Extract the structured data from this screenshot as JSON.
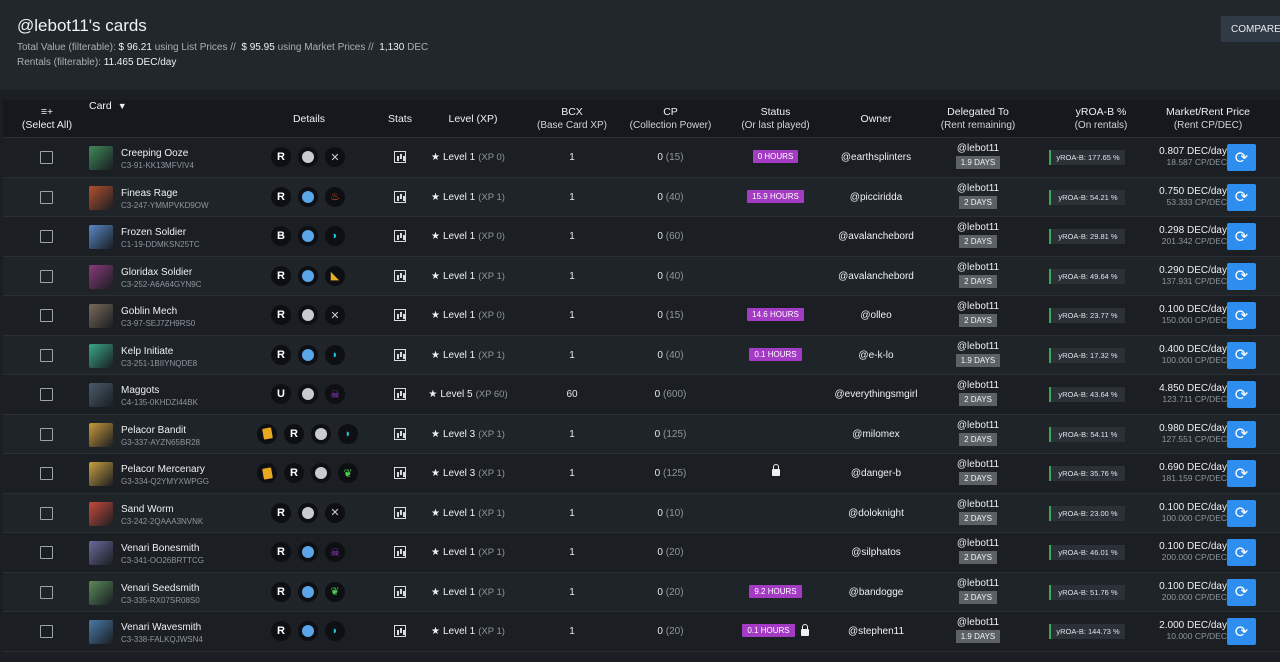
{
  "header": {
    "title": "@lebot11's cards",
    "total_label": "Total Value (filterable):",
    "list_value": "$ 96.21",
    "list_label": "using List Prices //",
    "market_value": "$ 95.95",
    "market_label": "using Market Prices //",
    "dec_value": "1,130",
    "dec_label": "DEC",
    "rentals_label": "Rentals (filterable):",
    "rentals_value": "11.465 DEC/day",
    "compare_label": "COMPARE Y"
  },
  "columns": {
    "select": "≡+",
    "select_sub": "(Select All)",
    "card": "Card",
    "details": "Details",
    "stats": "Stats",
    "level": "Level (XP)",
    "bcx": "BCX",
    "bcx_sub": "(Base Card XP)",
    "cp": "CP",
    "cp_sub": "(Collection Power)",
    "status": "Status",
    "status_sub": "(Or last played)",
    "owner": "Owner",
    "delegated": "Delegated To",
    "delegated_sub": "(Rent remaining)",
    "yroa": "yROA-B %",
    "yroa_sub": "(On rentals)",
    "price": "Market/Rent Price",
    "price_sub": "(Rent CP/DEC)"
  },
  "colors": {
    "accent": "#2d8ef0",
    "status_badge": "#a33bc5",
    "days_badge": "#5c6166"
  },
  "rows": [
    {
      "name": "Creeping Ooze",
      "id": "C3-91-KK13MFVIV4",
      "edition": "R",
      "mana": "#c8ccd0",
      "element": "neutral-icon",
      "el_color": "#0d0f12",
      "level": "Level 1",
      "xp": "(XP 0)",
      "bcx": "1",
      "cp": "0",
      "cp2": "(15)",
      "status": "0 HOURS",
      "lock": false,
      "owner": "@earthsplinters",
      "deleg": "@lebot11",
      "days": "1.9 DAYS",
      "yroa": "yROA-B: 177.65 %",
      "price": "0.807 DEC/day",
      "rent": "18.587 CP/DEC",
      "thumb": "#3f8a5a"
    },
    {
      "name": "Fineas Rage",
      "id": "C3-247-YMMPVKD9OW",
      "edition": "R",
      "mana": "#5aa6e8",
      "element": "fire-icon",
      "el_color": "#e25a3c",
      "level": "Level 1",
      "xp": "(XP 1)",
      "bcx": "1",
      "cp": "0",
      "cp2": "(40)",
      "status": "15.9 HOURS",
      "lock": false,
      "owner": "@picciridda",
      "deleg": "@lebot11",
      "days": "2 DAYS",
      "yroa": "yROA-B: 54.21 %",
      "price": "0.750 DEC/day",
      "rent": "53.333 CP/DEC",
      "thumb": "#b4502c"
    },
    {
      "name": "Frozen Soldier",
      "id": "C1-19-DDMKSN25TC",
      "edition": "B",
      "mana": "#5aa6e8",
      "element": "water-icon",
      "el_color": "#22c6d8",
      "level": "Level 1",
      "xp": "(XP 0)",
      "bcx": "1",
      "cp": "0",
      "cp2": "(60)",
      "status": "",
      "lock": false,
      "owner": "@avalanchebord",
      "deleg": "@lebot11",
      "days": "2 DAYS",
      "yroa": "yROA-B: 29.81 %",
      "price": "0.298 DEC/day",
      "rent": "201.342 CP/DEC",
      "thumb": "#5a88c8"
    },
    {
      "name": "Gloridax Soldier",
      "id": "C3-252-A6A64GYN9C",
      "edition": "R",
      "mana": "#5aa6e8",
      "element": "dragon-icon",
      "el_color": "#e8b020",
      "level": "Level 1",
      "xp": "(XP 1)",
      "bcx": "1",
      "cp": "0",
      "cp2": "(40)",
      "status": "",
      "lock": false,
      "owner": "@avalanchebord",
      "deleg": "@lebot11",
      "days": "2 DAYS",
      "yroa": "yROA-B: 49.64 %",
      "price": "0.290 DEC/day",
      "rent": "137.931 CP/DEC",
      "thumb": "#8a3a7a"
    },
    {
      "name": "Goblin Mech",
      "id": "C3-97-SEJ7ZH9RS0",
      "edition": "R",
      "mana": "#c8ccd0",
      "element": "neutral-icon",
      "el_color": "#0d0f12",
      "level": "Level 1",
      "xp": "(XP 0)",
      "bcx": "1",
      "cp": "0",
      "cp2": "(15)",
      "status": "14.6 HOURS",
      "lock": false,
      "owner": "@olleo",
      "deleg": "@lebot11",
      "days": "2 DAYS",
      "yroa": "yROA-B: 23.77 %",
      "price": "0.100 DEC/day",
      "rent": "150.000 CP/DEC",
      "thumb": "#7a6a5a"
    },
    {
      "name": "Kelp Initiate",
      "id": "C3-251-1BIIYNQDE8",
      "edition": "R",
      "mana": "#5aa6e8",
      "element": "water-icon",
      "el_color": "#22c6d8",
      "level": "Level 1",
      "xp": "(XP 1)",
      "bcx": "1",
      "cp": "0",
      "cp2": "(40)",
      "status": "0.1 HOURS",
      "lock": false,
      "owner": "@e-k-lo",
      "deleg": "@lebot11",
      "days": "1.9 DAYS",
      "yroa": "yROA-B: 17.32 %",
      "price": "0.400 DEC/day",
      "rent": "100.000 CP/DEC",
      "thumb": "#3aa88a"
    },
    {
      "name": "Maggots",
      "id": "C4-135-0KHDZI44BK",
      "edition": "U",
      "mana": "#c8ccd0",
      "element": "death-icon",
      "el_color": "#a040d8",
      "level": "Level 5",
      "xp": "(XP 60)",
      "bcx": "60",
      "cp": "0",
      "cp2": "(600)",
      "status": "",
      "lock": false,
      "owner": "@everythingsmgirl",
      "deleg": "@lebot11",
      "days": "2 DAYS",
      "yroa": "yROA-B: 43.64 %",
      "price": "4.850 DEC/day",
      "rent": "123.711 CP/DEC",
      "thumb": "#4a5a6a"
    },
    {
      "name": "Pelacor Bandit",
      "id": "G3-337-AYZN65BR28",
      "edition": "R",
      "gold": true,
      "mana": "#c8ccd0",
      "element": "water-icon",
      "el_color": "#22c6d8",
      "level": "Level 3",
      "xp": "(XP 1)",
      "bcx": "1",
      "cp": "0",
      "cp2": "(125)",
      "status": "",
      "lock": false,
      "owner": "@milomex",
      "deleg": "@lebot11",
      "days": "2 DAYS",
      "yroa": "yROA-B: 54.11 %",
      "price": "0.980 DEC/day",
      "rent": "127.551 CP/DEC",
      "thumb": "#c89a3a"
    },
    {
      "name": "Pelacor Mercenary",
      "id": "G3-334-Q2YMYXWPGG",
      "edition": "R",
      "gold": true,
      "mana": "#c8ccd0",
      "element": "earth-icon",
      "el_color": "#4cc850",
      "level": "Level 3",
      "xp": "(XP 1)",
      "bcx": "1",
      "cp": "0",
      "cp2": "(125)",
      "status": "",
      "lock": true,
      "owner": "@danger-b",
      "deleg": "@lebot11",
      "days": "2 DAYS",
      "yroa": "yROA-B: 35.76 %",
      "price": "0.690 DEC/day",
      "rent": "181.159 CP/DEC",
      "thumb": "#c8a040"
    },
    {
      "name": "Sand Worm",
      "id": "C3-242-2QAAA3NVNK",
      "edition": "R",
      "mana": "#c8ccd0",
      "element": "neutral-icon",
      "el_color": "#0d0f12",
      "level": "Level 1",
      "xp": "(XP 1)",
      "bcx": "1",
      "cp": "0",
      "cp2": "(10)",
      "status": "",
      "lock": false,
      "owner": "@doloknight",
      "deleg": "@lebot11",
      "days": "2 DAYS",
      "yroa": "yROA-B: 23.00 %",
      "price": "0.100 DEC/day",
      "rent": "100.000 CP/DEC",
      "thumb": "#c84a3a"
    },
    {
      "name": "Venari Bonesmith",
      "id": "C3-341-OO26BRTTCG",
      "edition": "R",
      "mana": "#5aa6e8",
      "element": "death-icon",
      "el_color": "#a040d8",
      "level": "Level 1",
      "xp": "(XP 1)",
      "bcx": "1",
      "cp": "0",
      "cp2": "(20)",
      "status": "",
      "lock": false,
      "owner": "@silphatos",
      "deleg": "@lebot11",
      "days": "2 DAYS",
      "yroa": "yROA-B: 46.01 %",
      "price": "0.100 DEC/day",
      "rent": "200.000 CP/DEC",
      "thumb": "#6a6a9a"
    },
    {
      "name": "Venari Seedsmith",
      "id": "C3-335-RX07SR08S0",
      "edition": "R",
      "mana": "#5aa6e8",
      "element": "earth-icon",
      "el_color": "#4cc850",
      "level": "Level 1",
      "xp": "(XP 1)",
      "bcx": "1",
      "cp": "0",
      "cp2": "(20)",
      "status": "9.2 HOURS",
      "lock": false,
      "owner": "@bandogge",
      "deleg": "@lebot11",
      "days": "2 DAYS",
      "yroa": "yROA-B: 51.76 %",
      "price": "0.100 DEC/day",
      "rent": "200.000 CP/DEC",
      "thumb": "#5a8a5a"
    },
    {
      "name": "Venari Wavesmith",
      "id": "C3-338-FALKQJWSN4",
      "edition": "R",
      "mana": "#5aa6e8",
      "element": "water-icon",
      "el_color": "#22c6d8",
      "level": "Level 1",
      "xp": "(XP 1)",
      "bcx": "1",
      "cp": "0",
      "cp2": "(20)",
      "status": "0.1 HOURS",
      "lock": true,
      "owner": "@stephen11",
      "deleg": "@lebot11",
      "days": "1.9 DAYS",
      "yroa": "yROA-B: 144.73 %",
      "price": "2.000 DEC/day",
      "rent": "10.000 CP/DEC",
      "thumb": "#4a7aa8"
    }
  ]
}
